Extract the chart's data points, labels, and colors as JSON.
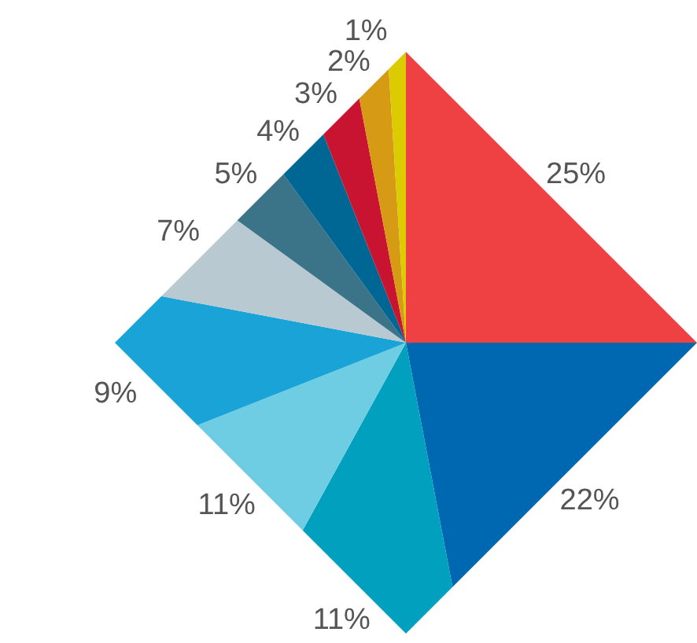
{
  "chart_data": {
    "type": "pie",
    "categories": [
      null,
      null,
      null,
      null,
      null,
      null,
      null,
      null,
      null,
      null,
      null
    ],
    "values": [
      25,
      22,
      11,
      11,
      9,
      7,
      5,
      4,
      3,
      2,
      1
    ],
    "colors": [
      "#ef4044",
      "#0067b1",
      "#00a0be",
      "#6ecce3",
      "#19a3d6",
      "#b9c9d2",
      "#3b7489",
      "#006694",
      "#c81430",
      "#d69a14",
      "#dccb00"
    ],
    "value_labels": [
      "25%",
      "22%",
      "11%",
      "11%",
      "9%",
      "7%",
      "5%",
      "4%",
      "3%",
      "2%",
      "1%"
    ]
  }
}
